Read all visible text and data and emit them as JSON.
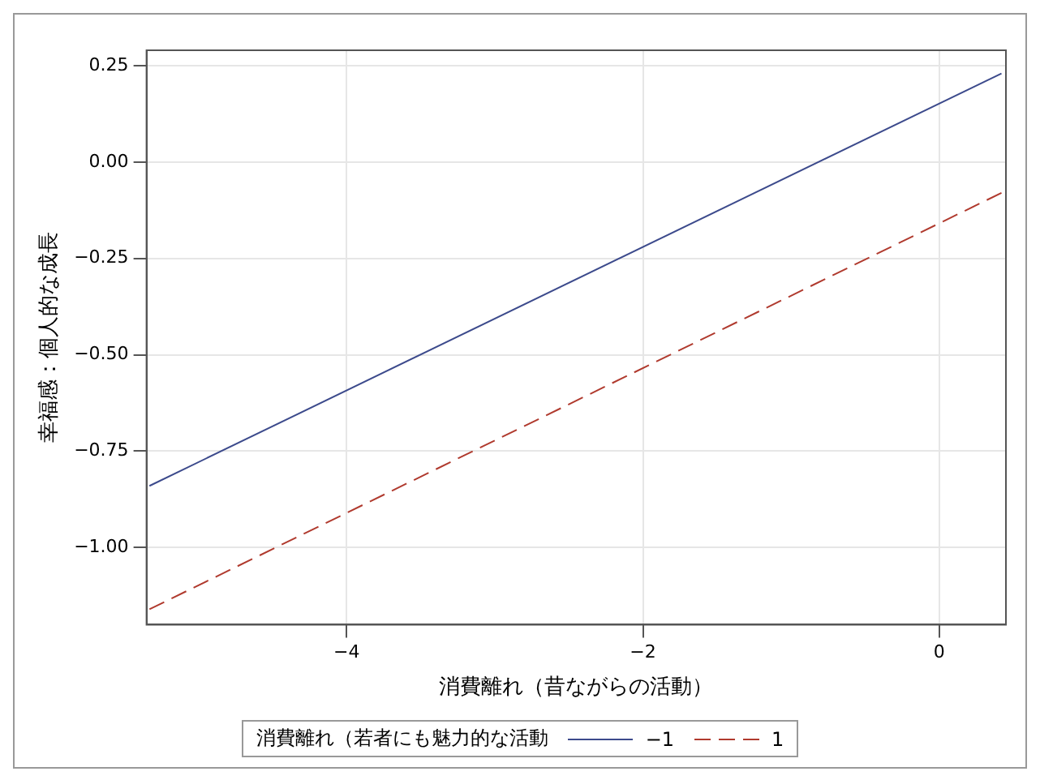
{
  "chart_data": {
    "type": "line",
    "xlabel": "消費離れ（昔ながらの活動）",
    "ylabel": "幸福感：個人的な成長",
    "legend_title": "消費離れ（若者にも魅力的な活動",
    "legend": "bottom",
    "grid": true,
    "marker": "none",
    "xlim": [
      -5.35,
      0.45
    ],
    "xticks": [
      -4,
      -2,
      0
    ],
    "ylim": [
      -1.2,
      0.29
    ],
    "yticks": [
      {
        "value": -1,
        "label": "−1.00"
      },
      {
        "value": -0.75,
        "label": "−0.75"
      },
      {
        "value": -0.5,
        "label": "−0.50"
      },
      {
        "value": -0.25,
        "label": "−0.25"
      },
      {
        "value": 0,
        "label": "0.00"
      },
      {
        "value": 0.25,
        "label": "0.25"
      }
    ],
    "x": [
      -5.33,
      0.42
    ],
    "series": [
      {
        "name": "−1",
        "color": "#3c4a8c",
        "line_style": "solid",
        "values": [
          -0.84,
          0.23
        ]
      },
      {
        "name": "1",
        "color": "#b03a2e",
        "line_style": "dashed",
        "values": [
          -1.16,
          -0.08
        ]
      }
    ]
  }
}
